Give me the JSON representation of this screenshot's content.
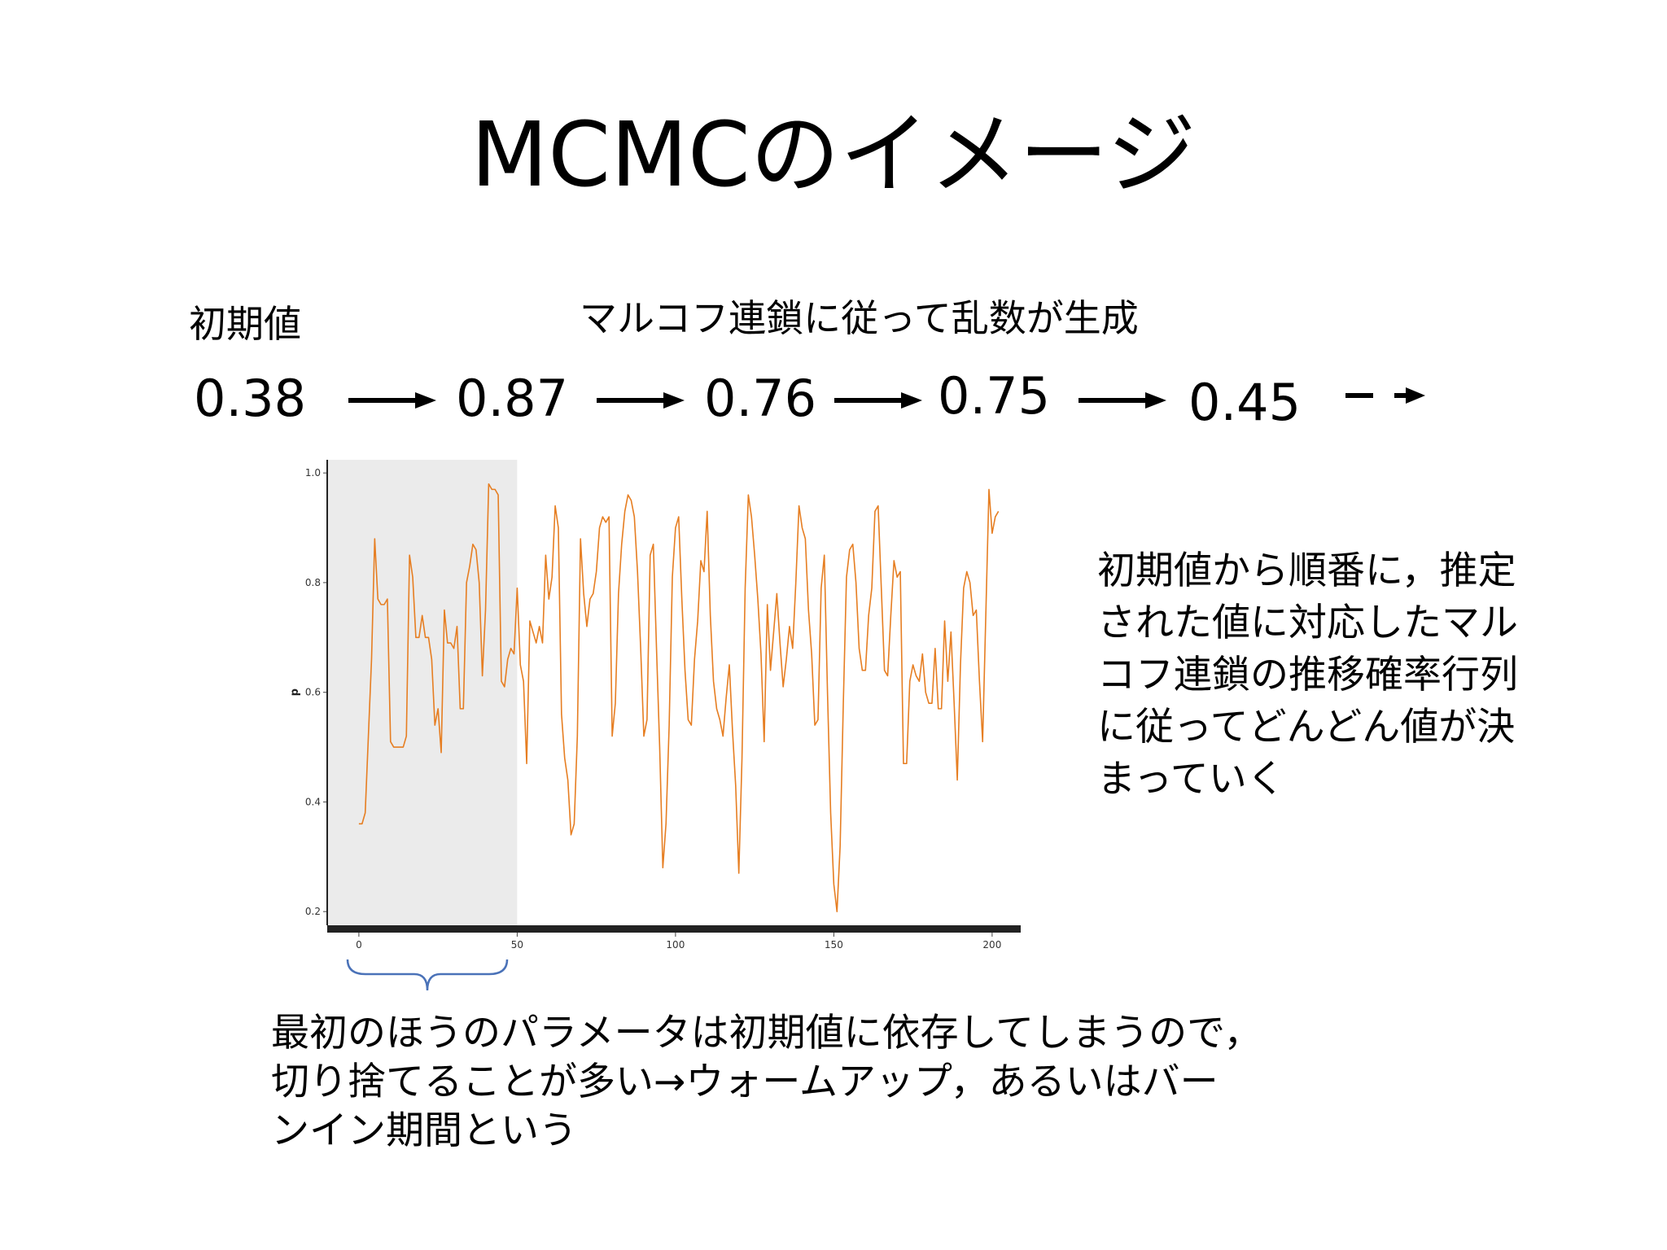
{
  "title": "MCMCのイメージ",
  "initial_label": "初期値",
  "chain_label": "マルコフ連鎖に従って乱数が生成",
  "sequence": [
    "0.38",
    "0.87",
    "0.76",
    "0.75",
    "0.45"
  ],
  "explanation": [
    "初期値から順番に，推定",
    "された値に対応したマル",
    "コフ連鎖の推移確率行列",
    "に従ってどんどん値が決",
    "まっていく"
  ],
  "burnin_note": [
    "最初のほうのパラメータは初期値に依存してしまうので，",
    "切り捨てることが多い→ウォームアップ，あるいはバー",
    "ンイン期間という"
  ],
  "colors": {
    "trace": "#e67e22",
    "burnin_region": "#ebebeb",
    "axis": "#222222",
    "brace": "#4a72b8"
  },
  "chart_data": {
    "type": "line",
    "title": "",
    "xlabel": "",
    "ylabel": "p",
    "xlim": [
      0,
      200
    ],
    "ylim": [
      0.2,
      1.0
    ],
    "x_ticks": [
      "0",
      "50",
      "100",
      "150",
      "200"
    ],
    "y_ticks": [
      "0.2",
      "0.4",
      "0.6",
      "0.8",
      "1.0"
    ],
    "shaded_region": [
      0,
      50
    ],
    "grid": false,
    "series": [
      {
        "name": "",
        "values": [
          0.36,
          0.36,
          0.38,
          0.52,
          0.66,
          0.88,
          0.77,
          0.76,
          0.76,
          0.77,
          0.51,
          0.5,
          0.5,
          0.5,
          0.5,
          0.52,
          0.85,
          0.81,
          0.7,
          0.7,
          0.74,
          0.7,
          0.7,
          0.66,
          0.54,
          0.57,
          0.49,
          0.75,
          0.69,
          0.69,
          0.68,
          0.72,
          0.57,
          0.57,
          0.8,
          0.83,
          0.87,
          0.86,
          0.8,
          0.63,
          0.75,
          0.98,
          0.97,
          0.97,
          0.96,
          0.62,
          0.61,
          0.66,
          0.68,
          0.67,
          0.79,
          0.65,
          0.62,
          0.47,
          0.73,
          0.71,
          0.69,
          0.72,
          0.69,
          0.85,
          0.77,
          0.81,
          0.94,
          0.9,
          0.56,
          0.48,
          0.44,
          0.34,
          0.36,
          0.52,
          0.88,
          0.78,
          0.72,
          0.77,
          0.78,
          0.82,
          0.9,
          0.92,
          0.91,
          0.92,
          0.52,
          0.58,
          0.78,
          0.87,
          0.93,
          0.96,
          0.95,
          0.92,
          0.82,
          0.68,
          0.52,
          0.55,
          0.85,
          0.87,
          0.68,
          0.5,
          0.28,
          0.36,
          0.54,
          0.81,
          0.9,
          0.92,
          0.77,
          0.64,
          0.55,
          0.54,
          0.66,
          0.73,
          0.84,
          0.82,
          0.93,
          0.74,
          0.62,
          0.57,
          0.55,
          0.52,
          0.59,
          0.65,
          0.53,
          0.43,
          0.27,
          0.48,
          0.79,
          0.96,
          0.92,
          0.85,
          0.77,
          0.67,
          0.51,
          0.76,
          0.64,
          0.71,
          0.78,
          0.69,
          0.61,
          0.66,
          0.72,
          0.68,
          0.8,
          0.94,
          0.9,
          0.88,
          0.75,
          0.67,
          0.54,
          0.55,
          0.79,
          0.85,
          0.6,
          0.38,
          0.25,
          0.2,
          0.32,
          0.58,
          0.81,
          0.86,
          0.87,
          0.8,
          0.68,
          0.64,
          0.64,
          0.74,
          0.79,
          0.93,
          0.94,
          0.79,
          0.64,
          0.63,
          0.74,
          0.84,
          0.81,
          0.82,
          0.47,
          0.47,
          0.62,
          0.65,
          0.63,
          0.62,
          0.67,
          0.6,
          0.58,
          0.58,
          0.68,
          0.57,
          0.57,
          0.73,
          0.62,
          0.71,
          0.58,
          0.44,
          0.65,
          0.79,
          0.82,
          0.8,
          0.74,
          0.75,
          0.62,
          0.51,
          0.74,
          0.97,
          0.89,
          0.92,
          0.93
        ]
      }
    ]
  }
}
